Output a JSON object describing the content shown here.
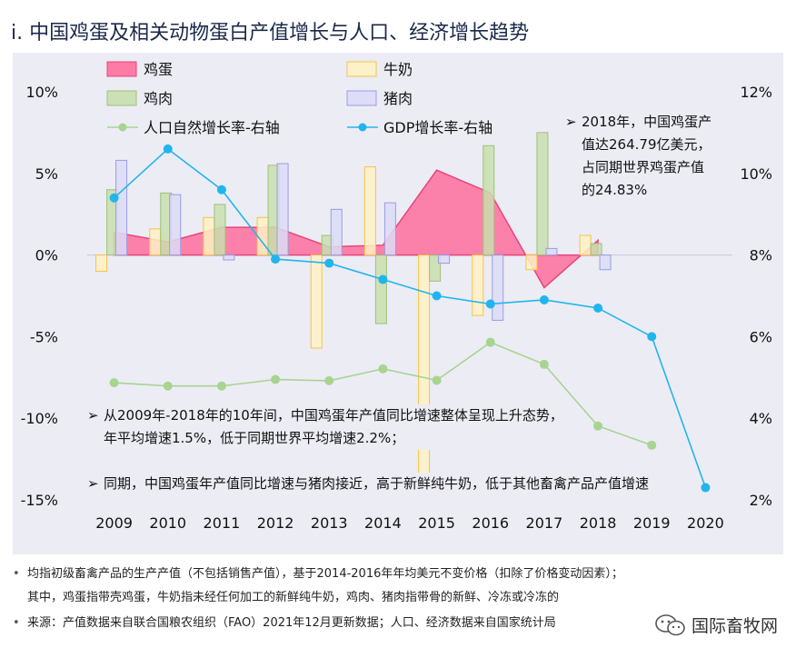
{
  "title": "i. 中国鸡蛋及相关动物蛋白产值增长与人口、经济增长趋势",
  "chart_data": {
    "type": "bar",
    "categories": [
      "2009",
      "2010",
      "2011",
      "2012",
      "2013",
      "2014",
      "2015",
      "2016",
      "2017",
      "2018",
      "2019",
      "2020"
    ],
    "left_axis": {
      "ticks": [
        "10%",
        "5%",
        "0%",
        "-5%",
        "-10%",
        "-15%"
      ],
      "tick_values": [
        10,
        5,
        0,
        -5,
        -10,
        -15
      ],
      "ylim": [
        -15,
        10
      ]
    },
    "right_axis": {
      "ticks": [
        "12%",
        "10%",
        "8%",
        "6%",
        "4%",
        "2%"
      ],
      "tick_values": [
        12,
        10,
        8,
        6,
        4,
        2
      ],
      "ylim": [
        2,
        12
      ]
    },
    "series": [
      {
        "name": "鸡蛋",
        "kind": "area",
        "axis": "left",
        "color": "#ff6f9c",
        "values": [
          1.4,
          0.8,
          1.7,
          1.7,
          0.5,
          0.6,
          5.2,
          3.8,
          -2.0,
          0.9,
          null,
          null
        ]
      },
      {
        "name": "牛奶",
        "kind": "bar",
        "axis": "left",
        "color": "#fff2c4",
        "stroke": "#f5c34a",
        "values": [
          -1.0,
          1.6,
          2.3,
          2.3,
          -5.7,
          5.4,
          -14.6,
          -3.7,
          -0.9,
          1.2,
          null,
          null
        ]
      },
      {
        "name": "鸡肉",
        "kind": "bar",
        "axis": "left",
        "color": "#c9dfae",
        "stroke": "#9cc27a",
        "values": [
          4.0,
          3.8,
          3.1,
          5.5,
          1.2,
          -4.2,
          -1.6,
          6.7,
          7.5,
          0.7,
          null,
          null
        ]
      },
      {
        "name": "猪肉",
        "kind": "bar",
        "axis": "left",
        "color": "#dcdcf7",
        "stroke": "#9b9be0",
        "values": [
          5.8,
          3.7,
          -0.3,
          5.6,
          2.8,
          3.2,
          -0.5,
          -4.0,
          0.4,
          -0.9,
          null,
          null
        ]
      },
      {
        "name": "人口自然增长率-右轴",
        "kind": "line",
        "axis": "right",
        "color": "#a8d491",
        "values": [
          4.87,
          4.79,
          4.79,
          4.95,
          4.92,
          5.21,
          4.93,
          5.86,
          5.32,
          3.81,
          3.34,
          null
        ]
      },
      {
        "name": "GDP增长率-右轴",
        "kind": "line",
        "axis": "right",
        "color": "#21b5ee",
        "values": [
          9.4,
          10.6,
          9.6,
          7.9,
          7.8,
          7.4,
          7.0,
          6.8,
          6.9,
          6.7,
          6.0,
          2.3
        ]
      }
    ]
  },
  "annotations": {
    "a1": {
      "arrow": "➢",
      "lines": [
        "2018年，中国鸡蛋产",
        "值达264.79亿美元，",
        "占同期世界鸡蛋产值",
        "的24.83%"
      ]
    },
    "a2": {
      "arrow": "➢",
      "lines": [
        "从2009年-2018年的10年间，中国鸡蛋年产值同比增速整体呈现上升态势，",
        "年平均增速1.5%，低于同期世界平均增速2.2%；"
      ]
    },
    "a3": {
      "arrow": "➢",
      "lines": [
        "同期，中国鸡蛋年产值同比增速与猪肉接近，高于新鲜纯牛奶，低于其他畜禽产品产值增速"
      ]
    }
  },
  "footnotes": [
    {
      "bullet": "•",
      "text": "均指初级畜禽产品的生产产值（不包括销售产值），基于2014-2016年年均美元不变价格（扣除了价格变动因素）；"
    },
    {
      "bullet": "",
      "text": "其中，鸡蛋指带壳鸡蛋，牛奶指未经任何加工的新鲜纯牛奶，鸡肉、猪肉指带骨的新鲜、冷冻或冷冻的"
    },
    {
      "bullet": "•",
      "text": "来源：产值数据来自联合国粮农组织（FAO）2021年12月更新数据；人口、经济数据来自国家统计局"
    }
  ],
  "brand": {
    "name": "国际畜牧网",
    "icon": "wechat-icon"
  }
}
